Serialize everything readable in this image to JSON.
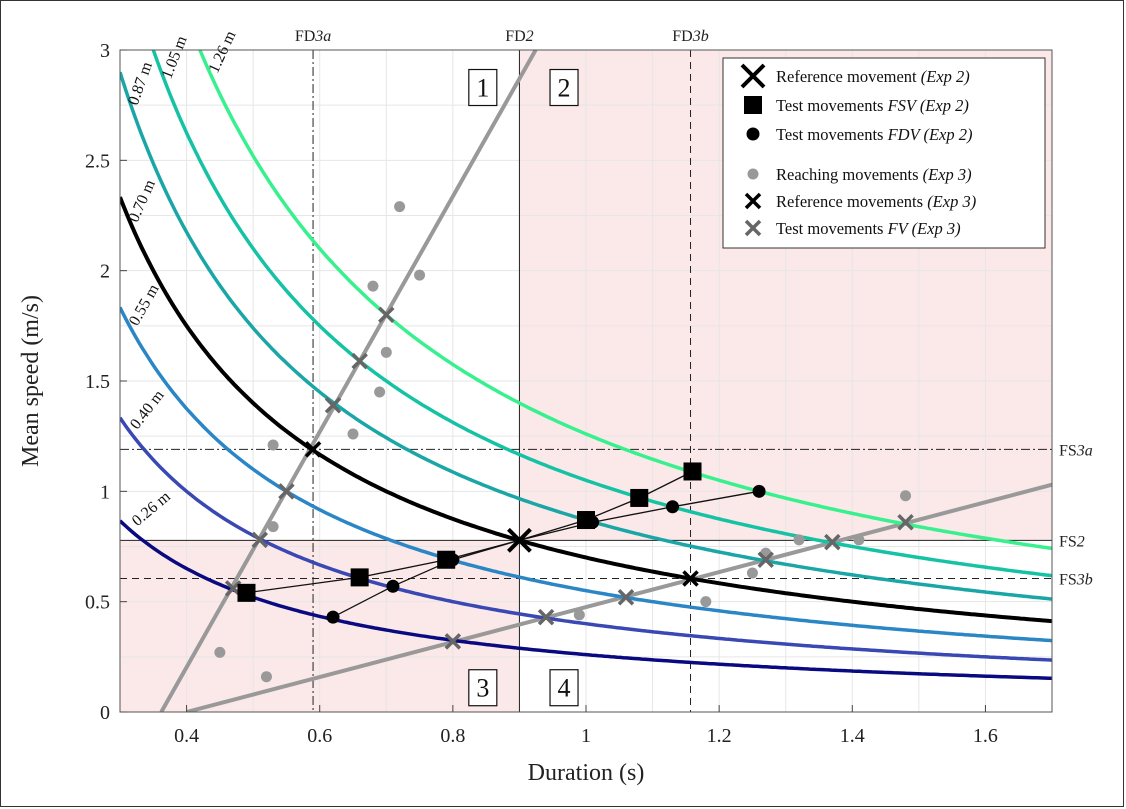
{
  "chart_data": {
    "type": "line",
    "xlabel": "Duration (s)",
    "ylabel": "Mean speed (m/s)",
    "xlim": [
      0.3,
      1.7
    ],
    "ylim": [
      0,
      3
    ],
    "grid": true,
    "legend_placement": "top-right",
    "x_ticks": [
      "0.4",
      "0.6",
      "0.8",
      "1",
      "1.2",
      "1.4",
      "1.6"
    ],
    "y_ticks": [
      "0",
      "0.5",
      "1",
      "1.5",
      "2",
      "2.5",
      "3"
    ],
    "colors": {
      "shade": "#fbe8e8",
      "grid": "#e6e6e6",
      "gray_line": "#999999",
      "gray_marker": "#999999",
      "dark_gray_marker": "#666666",
      "black": "#000000"
    },
    "iso_distance_curves": [
      {
        "label": "0.26 m",
        "distance": 0.26,
        "color": "#0a0a80"
      },
      {
        "label": "0.40 m",
        "distance": 0.4,
        "color": "#3a48b4"
      },
      {
        "label": "0.55 m",
        "distance": 0.55,
        "color": "#2a86c4"
      },
      {
        "label": "0.70 m",
        "distance": 0.7,
        "color": "#000000"
      },
      {
        "label": "0.87 m",
        "distance": 0.87,
        "color": "#1aa6a6"
      },
      {
        "label": "1.05 m",
        "distance": 1.05,
        "color": "#16c2a4"
      },
      {
        "label": "1.26 m",
        "distance": 1.26,
        "color": "#38f08e"
      }
    ],
    "reference_lines": {
      "vertical": [
        {
          "label_prefix": "FD",
          "label_suffix": "3a",
          "x": 0.59,
          "style": "dash-dot"
        },
        {
          "label_prefix": "FD",
          "label_suffix": "2",
          "x": 0.9,
          "style": "solid"
        },
        {
          "label_prefix": "FD",
          "label_suffix": "3b",
          "x": 1.157,
          "style": "dashed"
        }
      ],
      "horizontal": [
        {
          "label_prefix": "FS",
          "label_suffix": "3a",
          "y": 1.19,
          "style": "dash-dot"
        },
        {
          "label_prefix": "FS",
          "label_suffix": "2",
          "y": 0.778,
          "style": "solid"
        },
        {
          "label_prefix": "FS",
          "label_suffix": "3b",
          "y": 0.605,
          "style": "dashed"
        }
      ]
    },
    "gray_lines": [
      {
        "name": "steep",
        "points": [
          [
            0.362,
            0
          ],
          [
            0.9,
            2.87
          ]
        ]
      },
      {
        "name": "shallow",
        "points": [
          [
            0.4,
            0
          ],
          [
            1.7,
            1.03
          ]
        ]
      }
    ],
    "quadrants": [
      {
        "label": "1",
        "x": 0.845,
        "y": 2.83
      },
      {
        "label": "2",
        "x": 0.967,
        "y": 2.83
      },
      {
        "label": "3",
        "x": 0.845,
        "y": 0.11
      },
      {
        "label": "4",
        "x": 0.967,
        "y": 0.11
      }
    ],
    "series": [
      {
        "name": "Reference movement",
        "legend_italic": "(Exp 2)",
        "marker": "big-x",
        "points": [
          [
            0.9,
            0.778
          ]
        ]
      },
      {
        "name": "Test movements",
        "legend_italic": "FSV (Exp 2)",
        "marker": "square",
        "points": [
          [
            0.49,
            0.54
          ],
          [
            0.66,
            0.61
          ],
          [
            0.79,
            0.69
          ],
          [
            1.0,
            0.87
          ],
          [
            1.08,
            0.97
          ],
          [
            1.16,
            1.09
          ]
        ]
      },
      {
        "name": "Test movements",
        "legend_italic": "FDV (Exp 2)",
        "marker": "circle",
        "points": [
          [
            0.62,
            0.43
          ],
          [
            0.71,
            0.57
          ],
          [
            0.8,
            0.69
          ],
          [
            1.01,
            0.86
          ],
          [
            1.13,
            0.93
          ],
          [
            1.26,
            1.0
          ]
        ]
      },
      {
        "name": "Reaching movements",
        "legend_italic": "(Exp 3)",
        "marker": "gray-dot",
        "points": [
          [
            0.45,
            0.27
          ],
          [
            0.52,
            0.16
          ],
          [
            0.53,
            0.84
          ],
          [
            0.53,
            1.21
          ],
          [
            0.65,
            1.26
          ],
          [
            0.69,
            1.45
          ],
          [
            0.68,
            1.93
          ],
          [
            0.7,
            1.63
          ],
          [
            0.72,
            2.29
          ],
          [
            0.75,
            1.98
          ],
          [
            0.99,
            0.44
          ],
          [
            1.18,
            0.5
          ],
          [
            1.25,
            0.63
          ],
          [
            1.27,
            0.72
          ],
          [
            1.32,
            0.78
          ],
          [
            1.41,
            0.78
          ],
          [
            1.48,
            0.98
          ]
        ]
      },
      {
        "name": "Reference movements",
        "legend_italic": "(Exp 3)",
        "marker": "x",
        "points": [
          [
            0.59,
            1.19
          ],
          [
            1.157,
            0.605
          ]
        ]
      },
      {
        "name": "Test movements",
        "legend_italic": "FV (Exp 3)",
        "marker": "gray-x",
        "points": [
          [
            0.47,
            0.56
          ],
          [
            0.51,
            0.78
          ],
          [
            0.55,
            1.0
          ],
          [
            0.62,
            1.39
          ],
          [
            0.66,
            1.59
          ],
          [
            0.7,
            1.8
          ],
          [
            0.8,
            0.32
          ],
          [
            0.94,
            0.43
          ],
          [
            1.06,
            0.52
          ],
          [
            1.27,
            0.69
          ],
          [
            1.37,
            0.77
          ],
          [
            1.48,
            0.86
          ]
        ]
      }
    ]
  }
}
